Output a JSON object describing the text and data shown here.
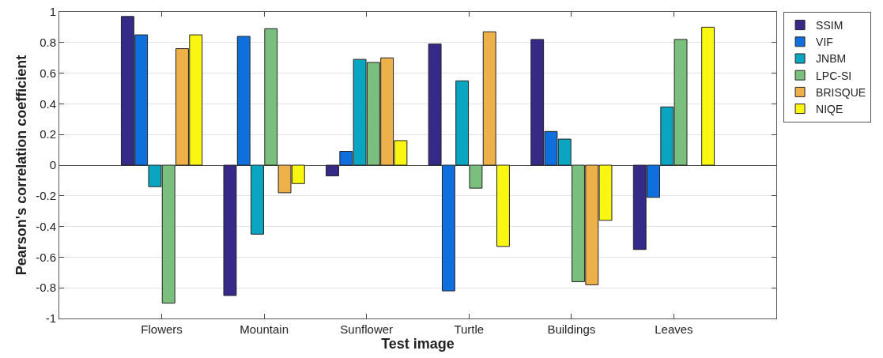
{
  "chart_data": {
    "type": "bar",
    "xlabel": "Test image",
    "ylabel": "Pearson's correlation coefficient",
    "categories": [
      "Flowers",
      "Mountain",
      "Sunflower",
      "Turtle",
      "Buildings",
      "Leaves"
    ],
    "series": [
      {
        "name": "SSIM",
        "color": "#352a87",
        "values": [
          0.97,
          -0.85,
          -0.07,
          0.79,
          0.82,
          -0.55
        ]
      },
      {
        "name": "VIF",
        "color": "#0f6fdc",
        "values": [
          0.85,
          0.84,
          0.09,
          -0.82,
          0.22,
          -0.21
        ]
      },
      {
        "name": "JNBM",
        "color": "#0aa5c1",
        "values": [
          -0.14,
          -0.45,
          0.69,
          0.55,
          0.17,
          0.38
        ]
      },
      {
        "name": "LPC-SI",
        "color": "#7bbf7e",
        "values": [
          -0.9,
          0.89,
          0.67,
          -0.15,
          -0.76,
          0.82
        ]
      },
      {
        "name": "BRISQUE",
        "color": "#eeb14a",
        "values": [
          0.76,
          -0.18,
          0.7,
          0.87,
          -0.78,
          null
        ]
      },
      {
        "name": "NIQE",
        "color": "#f9f711",
        "values": [
          0.85,
          -0.12,
          0.16,
          -0.53,
          -0.36,
          0.9
        ]
      }
    ],
    "ylim": [
      -1,
      1
    ],
    "yticks": [
      -1,
      -0.8,
      -0.6,
      -0.4,
      -0.2,
      0,
      0.2,
      0.4,
      0.6,
      0.8,
      1
    ],
    "grid": "y",
    "legend": "top right"
  }
}
